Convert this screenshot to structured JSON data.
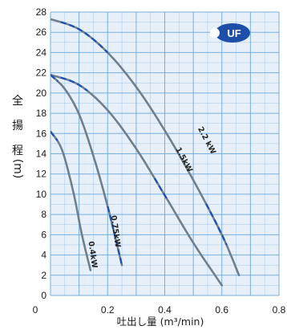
{
  "chart_data": {
    "type": "line",
    "xlabel": "吐出し量 (m³/min)",
    "ylabel": [
      "全",
      "揚",
      "程",
      "(m)"
    ],
    "xlim": [
      0,
      0.8
    ],
    "ylim": [
      0,
      28
    ],
    "x_ticks": [
      "0.2",
      "0.4",
      "0.6",
      "0.8"
    ],
    "y_ticks": [
      "0",
      "2",
      "4",
      "6",
      "8",
      "10",
      "12",
      "14",
      "16",
      "18",
      "20",
      "22",
      "24",
      "26",
      "28"
    ],
    "origin_label": "0",
    "grid": true,
    "badge": "UF",
    "colors": {
      "curve": "#6f7f8c",
      "dash": "#1f4fb5",
      "grid": "#6da7dc",
      "plot_bg": "#e7f0f8",
      "badge": "#1e4fa8"
    },
    "series": [
      {
        "name": "2.2kW",
        "label": "2.2 kW",
        "points": [
          [
            0.0,
            27.3
          ],
          [
            0.1,
            26.3
          ],
          [
            0.2,
            24.0
          ],
          [
            0.3,
            20.6
          ],
          [
            0.4,
            16.3
          ],
          [
            0.5,
            11.4
          ],
          [
            0.6,
            6.0
          ],
          [
            0.66,
            2.0
          ]
        ],
        "dashed_ranges": [
          [
            0.03,
            0.2
          ],
          [
            0.54,
            0.62
          ]
        ],
        "label_at": [
          0.54,
          15.2
        ]
      },
      {
        "name": "1.5kW",
        "label": "1.5kW",
        "points": [
          [
            0.0,
            21.8
          ],
          [
            0.1,
            20.8
          ],
          [
            0.2,
            18.3
          ],
          [
            0.3,
            14.5
          ],
          [
            0.4,
            9.9
          ],
          [
            0.5,
            5.2
          ],
          [
            0.6,
            1.0
          ]
        ],
        "dashed_ranges": [
          [
            0.03,
            0.13
          ],
          [
            0.36,
            0.41
          ]
        ],
        "label_at": [
          0.46,
          13.3
        ]
      },
      {
        "name": "0.75kW",
        "label": "0.75kW",
        "points": [
          [
            0.0,
            21.8
          ],
          [
            0.05,
            20.4
          ],
          [
            0.1,
            17.9
          ],
          [
            0.15,
            13.8
          ],
          [
            0.2,
            8.8
          ],
          [
            0.25,
            3.0
          ]
        ],
        "dashed_ranges": [
          [
            0.0,
            0.03
          ],
          [
            0.2,
            0.25
          ]
        ],
        "label_at": [
          0.22,
          6.3
        ]
      },
      {
        "name": "0.4kW",
        "label": "0.4kW",
        "points": [
          [
            0.0,
            16.2
          ],
          [
            0.04,
            14.4
          ],
          [
            0.08,
            10.2
          ],
          [
            0.11,
            6.0
          ],
          [
            0.14,
            2.5
          ]
        ],
        "dashed_ranges": [
          [
            0.0,
            0.025
          ]
        ],
        "label_at": [
          0.14,
          4.0
        ]
      }
    ]
  }
}
